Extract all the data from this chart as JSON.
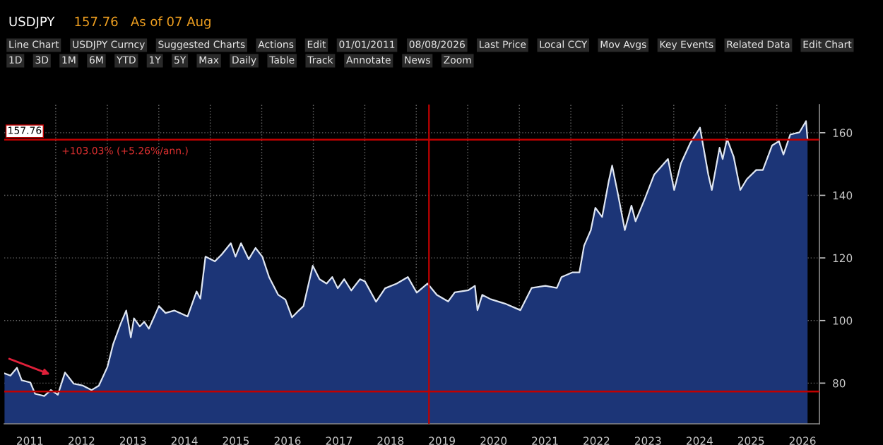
{
  "chart_data": {
    "type": "area",
    "title": "USDJPY",
    "subtitle": "157.76   As of 07 Aug",
    "x": [
      "2011-01-03",
      "2011-02-14",
      "2011-04-01",
      "2011-05-05",
      "2011-07-05",
      "2011-08-08",
      "2011-10-12",
      "2011-11-28",
      "2012-01-16",
      "2012-03-07",
      "2012-05-08",
      "2012-07-12",
      "2012-09-12",
      "2012-11-02",
      "2013-01-02",
      "2013-02-11",
      "2013-04-05",
      "2013-05-15",
      "2013-06-17",
      "2013-07-09",
      "2013-08-19",
      "2013-09-20",
      "2013-10-23",
      "2014-01-02",
      "2014-02-18",
      "2014-04-21",
      "2014-07-24",
      "2014-09-26",
      "2014-10-23",
      "2014-11-28",
      "2015-02-03",
      "2015-03-23",
      "2015-05-27",
      "2015-06-29",
      "2015-08-07",
      "2015-10-01",
      "2015-11-18",
      "2016-01-05",
      "2016-02-22",
      "2016-04-27",
      "2016-06-17",
      "2016-08-03",
      "2016-09-20",
      "2016-10-23",
      "2016-12-28",
      "2017-02-14",
      "2017-04-05",
      "2017-05-15",
      "2017-06-23",
      "2017-08-08",
      "2017-09-27",
      "2017-11-28",
      "2018-01-02",
      "2018-03-22",
      "2018-05-25",
      "2018-08-15",
      "2018-11-02",
      "2019-01-04",
      "2019-03-22",
      "2019-05-27",
      "2019-08-15",
      "2019-10-01",
      "2020-01-06",
      "2020-02-21",
      "2020-03-10",
      "2020-04-13",
      "2020-06-12",
      "2020-09-21",
      "2021-01-08",
      "2021-03-29",
      "2021-07-05",
      "2021-09-24",
      "2021-10-27",
      "2022-01-14",
      "2022-03-03",
      "2022-04-05",
      "2022-05-23",
      "2022-06-24",
      "2022-08-11",
      "2022-09-27",
      "2022-10-21",
      "2022-12-02",
      "2023-01-19",
      "2023-03-07",
      "2023-04-05",
      "2023-06-09",
      "2023-08-15",
      "2023-11-21",
      "2024-01-04",
      "2024-02-21",
      "2024-04-26",
      "2024-07-05",
      "2024-09-02",
      "2024-09-27",
      "2024-11-21",
      "2024-12-13",
      "2025-01-13",
      "2025-03-01",
      "2025-04-17",
      "2025-06-03",
      "2025-08-08",
      "2025-09-24",
      "2025-11-28",
      "2026-01-16",
      "2026-02-17",
      "2026-04-06",
      "2026-06-10",
      "2026-07-27",
      "2026-08-07"
    ],
    "series": [
      {
        "color": "#1c3577",
        "values": [
          83.1,
          82.4,
          84.9,
          80.9,
          80.2,
          76.6,
          75.9,
          77.8,
          76.3,
          83.4,
          79.8,
          79.2,
          77.8,
          79.2,
          85.2,
          92.4,
          98.9,
          103.2,
          94.6,
          100.7,
          98.1,
          99.6,
          97.4,
          104.6,
          102.4,
          103.2,
          101.3,
          109.3,
          107.0,
          120.4,
          118.9,
          121.1,
          124.7,
          120.4,
          124.7,
          119.6,
          123.2,
          120.4,
          113.9,
          108.2,
          106.7,
          101.0,
          103.2,
          104.6,
          117.5,
          113.2,
          111.8,
          113.9,
          110.3,
          113.2,
          109.6,
          113.2,
          112.5,
          106.0,
          110.3,
          111.8,
          113.9,
          108.9,
          111.8,
          108.2,
          106.1,
          109.0,
          109.7,
          111.1,
          103.3,
          108.2,
          106.8,
          105.4,
          103.3,
          110.4,
          111.1,
          110.4,
          113.9,
          115.4,
          115.4,
          123.9,
          128.9,
          136.0,
          133.1,
          144.5,
          149.5,
          140.2,
          128.9,
          136.7,
          131.7,
          138.8,
          146.6,
          151.6,
          141.7,
          150.2,
          156.6,
          161.6,
          146.6,
          141.7,
          155.2,
          151.6,
          158.0,
          152.3,
          141.7,
          145.2,
          148.1,
          148.1,
          155.9,
          157.3,
          153.0,
          159.4,
          160.1,
          163.7,
          157.76
        ]
      }
    ],
    "xlim": [
      "2011-01-01",
      "2026-10-30"
    ],
    "xticks": [
      {
        "value": "2011-07-02",
        "label": "2011"
      },
      {
        "value": "2012-01-01",
        "label": null
      },
      {
        "value": "2012-07-02",
        "label": "2012"
      },
      {
        "value": "2013-01-01",
        "label": null
      },
      {
        "value": "2013-07-02",
        "label": "2013"
      },
      {
        "value": "2014-01-01",
        "label": null
      },
      {
        "value": "2014-07-02",
        "label": "2014"
      },
      {
        "value": "2015-01-01",
        "label": null
      },
      {
        "value": "2015-07-02",
        "label": "2015"
      },
      {
        "value": "2016-01-01",
        "label": null
      },
      {
        "value": "2016-07-02",
        "label": "2016"
      },
      {
        "value": "2017-01-01",
        "label": null
      },
      {
        "value": "2017-07-02",
        "label": "2017"
      },
      {
        "value": "2018-01-01",
        "label": null
      },
      {
        "value": "2018-07-02",
        "label": "2018"
      },
      {
        "value": "2019-01-01",
        "label": null
      },
      {
        "value": "2019-07-02",
        "label": "2019"
      },
      {
        "value": "2020-01-01",
        "label": null
      },
      {
        "value": "2020-07-02",
        "label": "2020"
      },
      {
        "value": "2021-01-01",
        "label": null
      },
      {
        "value": "2021-07-02",
        "label": "2021"
      },
      {
        "value": "2022-01-01",
        "label": null
      },
      {
        "value": "2022-07-02",
        "label": "2022"
      },
      {
        "value": "2023-01-01",
        "label": null
      },
      {
        "value": "2023-07-02",
        "label": "2023"
      },
      {
        "value": "2024-01-01",
        "label": null
      },
      {
        "value": "2024-07-02",
        "label": "2024"
      },
      {
        "value": "2025-01-01",
        "label": null
      },
      {
        "value": "2025-07-02",
        "label": "2025"
      },
      {
        "value": "2026-01-01",
        "label": null
      },
      {
        "value": "2026-07-02",
        "label": "2026"
      }
    ],
    "ylim": [
      67,
      169
    ],
    "yticks": [
      80,
      100,
      120,
      140,
      160
    ],
    "grid": true,
    "marker": "none",
    "line_style": "solid",
    "ref_lines": [
      {
        "axis": "y",
        "value": 157.76,
        "label": "157.76",
        "color": "#c00000"
      },
      {
        "axis": "y",
        "value": 77.3,
        "color": "#c00000"
      },
      {
        "axis": "x",
        "value": "2019-04-01",
        "color": "#c00000"
      }
    ],
    "annotations": [
      {
        "text": "+103.03% (+5.26%/ann.)",
        "x": "2012-01-01",
        "y": 157.76
      },
      "Line Chart",
      "USDJPY Curncy",
      "Suggested Charts",
      "Actions",
      "Edit",
      "01/01/2011",
      "08/08/2026",
      "Last Price",
      "Local CCY",
      "Mov Avgs",
      "Key Events",
      "Related Data",
      "Edit Chart",
      "1D",
      "3D",
      "1M",
      "6M",
      "YTD",
      "1Y",
      "5Y",
      "Max",
      "Daily",
      "Table",
      "Track",
      "Annotate",
      "News",
      "Zoom"
    ]
  }
}
